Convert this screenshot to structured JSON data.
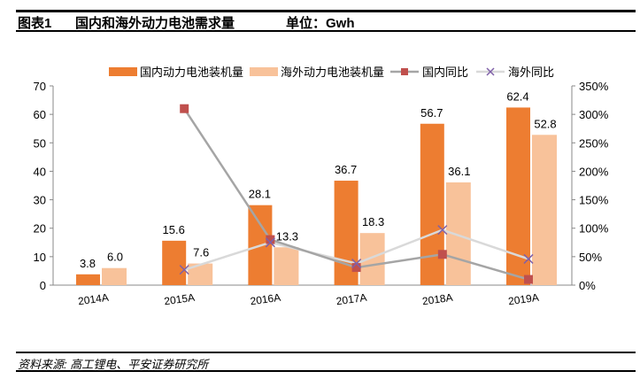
{
  "header": {
    "figure_no": "图表1",
    "title": "国内和海外动力电池需求量",
    "unit": "单位：Gwh"
  },
  "source": "资料来源: 高工锂电、平安证券研究所",
  "colors": {
    "domestic_bar": "#ED7D31",
    "overseas_bar": "#F8C29A",
    "domestic_line": "#A5A5A5",
    "domestic_marker": "#C0504D",
    "overseas_line": "#D9D9D9",
    "overseas_marker": "#7F60A8"
  },
  "chart_data": {
    "type": "bar+line",
    "categories": [
      "2014A",
      "2015A",
      "2016A",
      "2017A",
      "2018A",
      "2019A"
    ],
    "series": [
      {
        "name": "国内动力电池装机量",
        "type": "bar",
        "axis": "left",
        "values": [
          3.8,
          15.6,
          28.1,
          36.7,
          56.7,
          62.4
        ],
        "labels": [
          "3.8",
          "15.6",
          "28.1",
          "36.7",
          "56.7",
          "62.4"
        ]
      },
      {
        "name": "海外动力电池装机量",
        "type": "bar",
        "axis": "left",
        "values": [
          6.0,
          7.6,
          13.3,
          18.3,
          36.1,
          52.8
        ],
        "labels": [
          "6.0",
          "7.6",
          "13.3",
          "18.3",
          "36.1",
          "52.8"
        ]
      },
      {
        "name": "国内同比",
        "type": "line",
        "axis": "right",
        "marker": "square",
        "values": [
          null,
          310,
          80,
          31,
          54,
          10
        ]
      },
      {
        "name": "海外同比",
        "type": "line",
        "axis": "right",
        "marker": "x",
        "values": [
          null,
          27,
          75,
          38,
          97,
          46
        ]
      }
    ],
    "left_axis": {
      "ylim": [
        0,
        70
      ],
      "ticks": [
        "0",
        "10",
        "20",
        "30",
        "40",
        "50",
        "60",
        "70"
      ]
    },
    "right_axis": {
      "ylim": [
        0,
        350
      ],
      "ticks": [
        "0%",
        "50%",
        "100%",
        "150%",
        "200%",
        "250%",
        "300%",
        "350%"
      ]
    },
    "legend_position": "top",
    "grid": false
  }
}
